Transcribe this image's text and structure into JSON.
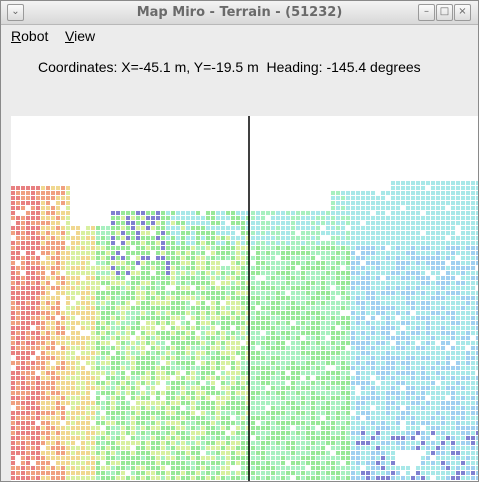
{
  "window": {
    "title": "Map Miro - Terrain - (51232)",
    "menu_glyph": "⌄",
    "minimize_glyph": "–",
    "maximize_glyph": "□",
    "close_glyph": "×"
  },
  "menubar": {
    "items": [
      {
        "mnemonic": "R",
        "rest": "obot"
      },
      {
        "mnemonic": "V",
        "rest": "iew"
      }
    ]
  },
  "status": {
    "text": "Coordinates: X=-45.1 m, Y=-19.5 m  Heading: -145.4 degrees"
  },
  "map": {
    "grid_color": "#ffffff",
    "heading_line_color": "#000000",
    "palette": [
      "#e88080",
      "#f0a080",
      "#f0d890",
      "#d8f0a0",
      "#98e898",
      "#a8f0c0",
      "#a8e8e8",
      "#a0d0f0",
      "#8080d0"
    ]
  }
}
